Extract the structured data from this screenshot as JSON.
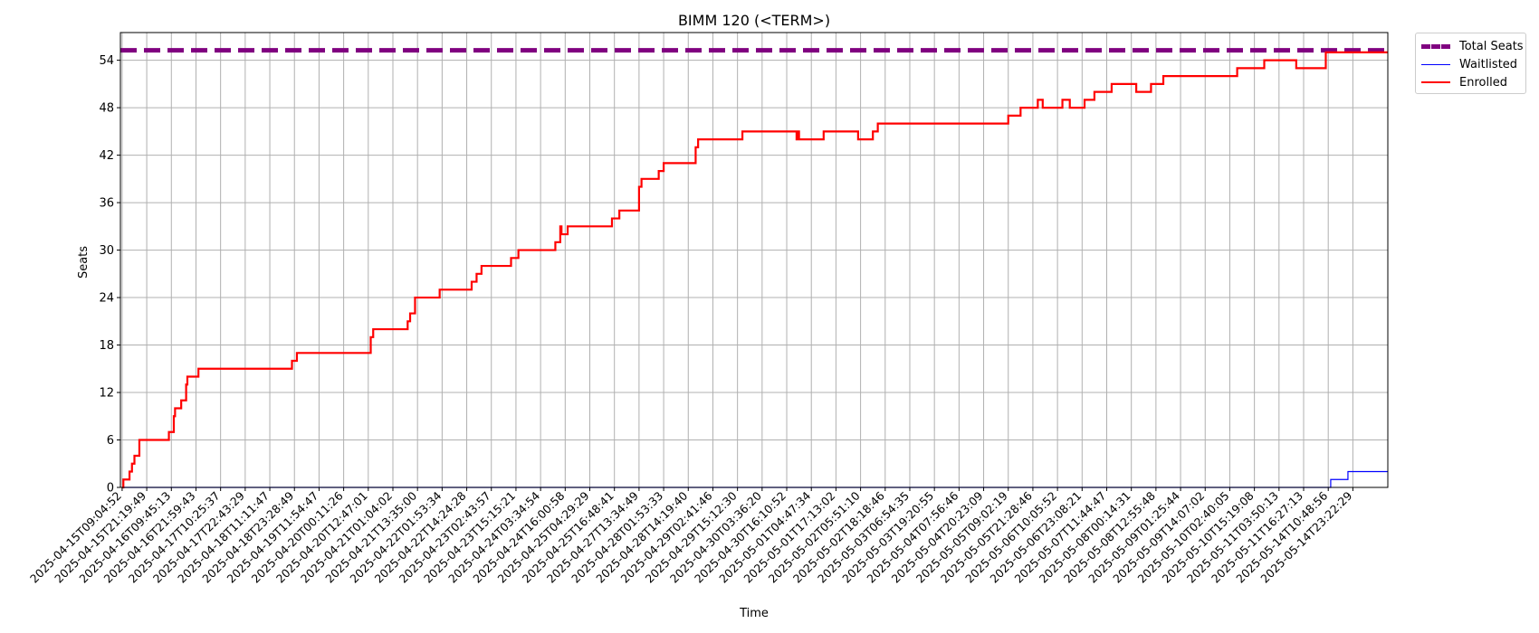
{
  "chart_data": {
    "type": "line",
    "title": "BIMM 120 (<TERM>)",
    "xlabel": "Time",
    "ylabel": "Seats",
    "ylim": [
      0,
      57.5
    ],
    "yticks": [
      0,
      6,
      12,
      18,
      24,
      30,
      36,
      42,
      48,
      54
    ],
    "grid": true,
    "legend_position": "outside-top-right",
    "x_tick_labels": [
      "2025-04-15T09:04:52",
      "2025-04-15T21:19:49",
      "2025-04-16T09:45:13",
      "2025-04-16T21:59:43",
      "2025-04-17T10:25:37",
      "2025-04-17T22:43:29",
      "2025-04-18T11:11:47",
      "2025-04-18T23:28:49",
      "2025-04-19T11:54:47",
      "2025-04-20T00:11:26",
      "2025-04-20T12:47:01",
      "2025-04-21T01:04:02",
      "2025-04-21T13:35:00",
      "2025-04-22T01:53:34",
      "2025-04-22T14:24:28",
      "2025-04-23T02:43:57",
      "2025-04-23T15:15:21",
      "2025-04-24T03:34:54",
      "2025-04-24T16:00:58",
      "2025-04-25T04:29:29",
      "2025-04-25T16:48:41",
      "2025-04-27T13:34:49",
      "2025-04-28T01:53:33",
      "2025-04-28T14:19:40",
      "2025-04-29T02:41:46",
      "2025-04-29T15:12:30",
      "2025-04-30T03:36:20",
      "2025-04-30T16:10:52",
      "2025-05-01T04:47:34",
      "2025-05-01T17:13:02",
      "2025-05-02T05:51:10",
      "2025-05-02T18:18:46",
      "2025-05-03T06:54:35",
      "2025-05-03T19:20:55",
      "2025-05-04T07:56:46",
      "2025-05-04T20:23:09",
      "2025-05-05T09:02:19",
      "2025-05-05T21:28:46",
      "2025-05-06T10:05:52",
      "2025-05-06T23:08:21",
      "2025-05-07T11:44:47",
      "2025-05-08T00:14:31",
      "2025-05-08T12:55:48",
      "2025-05-09T01:25:44",
      "2025-05-09T14:07:02",
      "2025-05-10T02:40:05",
      "2025-05-10T15:19:08",
      "2025-05-11T03:50:13",
      "2025-05-11T16:27:13",
      "2025-05-14T10:48:56",
      "2025-05-14T23:22:29"
    ],
    "x_range": [
      -0.07,
      51.42
    ],
    "series": [
      {
        "name": "Total Seats",
        "color": "#800080",
        "style": "dashed",
        "points": [
          [
            -0.07,
            55.25
          ],
          [
            51.42,
            55.25
          ]
        ]
      },
      {
        "name": "Waitlisted",
        "color": "#0000ff",
        "style": "step",
        "points": [
          [
            0,
            0
          ],
          [
            49.1,
            0
          ],
          [
            49.1,
            1
          ],
          [
            49.8,
            1
          ],
          [
            49.8,
            2
          ],
          [
            51.42,
            2
          ]
        ]
      },
      {
        "name": "Enrolled",
        "color": "#ff0000",
        "style": "step",
        "points": [
          [
            0.0,
            0
          ],
          [
            0.05,
            1
          ],
          [
            0.3,
            2
          ],
          [
            0.4,
            3
          ],
          [
            0.5,
            4
          ],
          [
            0.7,
            6
          ],
          [
            1.9,
            7
          ],
          [
            2.1,
            9
          ],
          [
            2.15,
            10
          ],
          [
            2.4,
            11
          ],
          [
            2.6,
            13
          ],
          [
            2.65,
            14
          ],
          [
            3.1,
            15
          ],
          [
            6.9,
            16
          ],
          [
            7.1,
            17
          ],
          [
            10.1,
            19
          ],
          [
            10.2,
            20
          ],
          [
            11.6,
            21
          ],
          [
            11.7,
            22
          ],
          [
            11.9,
            24
          ],
          [
            12.9,
            25
          ],
          [
            14.2,
            26
          ],
          [
            14.4,
            27
          ],
          [
            14.6,
            28
          ],
          [
            15.8,
            29
          ],
          [
            16.1,
            30
          ],
          [
            17.6,
            31
          ],
          [
            17.8,
            33
          ],
          [
            17.85,
            32
          ],
          [
            18.1,
            33
          ],
          [
            19.9,
            34
          ],
          [
            20.2,
            35
          ],
          [
            21.0,
            38
          ],
          [
            21.1,
            39
          ],
          [
            21.8,
            40
          ],
          [
            22.0,
            41
          ],
          [
            23.3,
            43
          ],
          [
            23.4,
            44
          ],
          [
            25.2,
            45
          ],
          [
            27.4,
            44
          ],
          [
            27.45,
            45
          ],
          [
            27.5,
            44
          ],
          [
            28.5,
            45
          ],
          [
            29.9,
            44
          ],
          [
            30.5,
            45
          ],
          [
            30.7,
            46
          ],
          [
            36.0,
            47
          ],
          [
            36.5,
            48
          ],
          [
            37.2,
            49
          ],
          [
            37.4,
            48
          ],
          [
            38.2,
            49
          ],
          [
            38.5,
            48
          ],
          [
            39.1,
            49
          ],
          [
            39.5,
            50
          ],
          [
            40.2,
            51
          ],
          [
            41.2,
            50
          ],
          [
            41.8,
            51
          ],
          [
            42.3,
            52
          ],
          [
            45.3,
            53
          ],
          [
            46.4,
            54
          ],
          [
            47.7,
            53
          ],
          [
            48.9,
            55
          ],
          [
            51.42,
            55
          ]
        ]
      }
    ]
  },
  "legend": {
    "total_seats": "Total Seats",
    "waitlisted": "Waitlisted",
    "enrolled": "Enrolled"
  }
}
